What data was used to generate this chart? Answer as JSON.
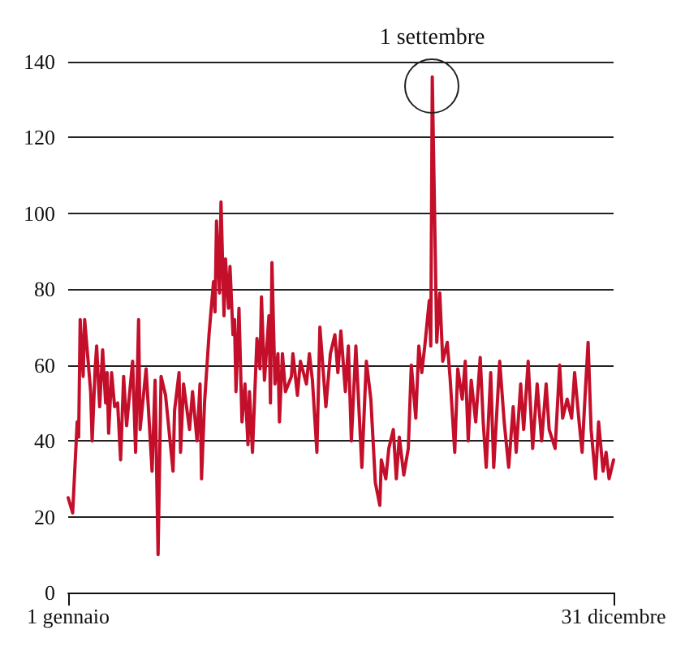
{
  "chart_data": {
    "type": "line",
    "x": [
      "--01-01",
      "--01-04",
      "--01-07",
      "--01-08",
      "--01-09",
      "--01-11",
      "--01-12",
      "--01-16",
      "--01-17",
      "--01-19",
      "--01-20",
      "--01-22",
      "--01-24",
      "--01-26",
      "--01-27",
      "--01-28",
      "--01-30",
      "--02-01",
      "--02-03",
      "--02-05",
      "--02-07",
      "--02-09",
      "--02-13",
      "--02-15",
      "--02-17",
      "--02-18",
      "--02-22",
      "--02-26",
      "--02-28",
      "--03-02",
      "--03-04",
      "--03-07",
      "--03-12",
      "--03-13",
      "--03-16",
      "--03-17",
      "--03-19",
      "--03-23",
      "--03-25",
      "--03-28",
      "--03-30",
      "--03-31",
      "--04-02",
      "--04-05",
      "--04-08",
      "--04-09",
      "--04-10",
      "--04-12",
      "--04-13",
      "--04-15",
      "--04-16",
      "--04-18",
      "--04-19",
      "--04-21",
      "--04-22",
      "--04-23",
      "--04-25",
      "--04-27",
      "--04-29",
      "--05-01",
      "--05-02",
      "--05-04",
      "--05-07",
      "--05-09",
      "--05-10",
      "--05-12",
      "--05-15",
      "--05-16",
      "--05-17",
      "--05-19",
      "--05-21",
      "--05-22",
      "--05-24",
      "--05-26",
      "--05-30",
      "--05-31",
      "--06-03",
      "--06-05",
      "--06-09",
      "--06-11",
      "--06-13",
      "--06-16",
      "--06-18",
      "--06-22",
      "--06-25",
      "--06-28",
      "--06-30",
      "--07-02",
      "--07-05",
      "--07-07",
      "--07-09",
      "--07-12",
      "--07-16",
      "--07-19",
      "--07-22",
      "--07-25",
      "--07-28",
      "--07-29",
      "--08-01",
      "--08-03",
      "--08-06",
      "--08-08",
      "--08-10",
      "--08-13",
      "--08-16",
      "--08-18",
      "--08-21",
      "--08-23",
      "--08-25",
      "--08-27",
      "--08-30",
      "--08-31",
      "--09-01",
      "--09-04",
      "--09-06",
      "--09-08",
      "--09-11",
      "--09-13",
      "--09-16",
      "--09-18",
      "--09-21",
      "--09-23",
      "--09-25",
      "--09-27",
      "--09-30",
      "--10-03",
      "--10-05",
      "--10-07",
      "--10-10",
      "--10-12",
      "--10-16",
      "--10-19",
      "--10-22",
      "--10-25",
      "--10-27",
      "--10-30",
      "--11-01",
      "--11-04",
      "--11-07",
      "--11-10",
      "--11-13",
      "--11-16",
      "--11-18",
      "--11-22",
      "--11-25",
      "--11-27",
      "--11-30",
      "--12-03",
      "--12-05",
      "--12-08",
      "--12-10",
      "--12-12",
      "--12-14",
      "--12-16",
      "--12-19",
      "--12-21",
      "--12-24",
      "--12-26",
      "--12-28",
      "--12-31"
    ],
    "series": [
      {
        "color": "#c40f2b",
        "values": [
          25,
          21,
          45,
          41,
          72,
          57,
          72,
          53,
          40,
          59,
          65,
          49,
          64,
          50,
          58,
          42,
          58,
          49,
          50,
          35,
          57,
          44,
          61,
          37,
          72,
          43,
          59,
          32,
          56,
          10,
          57,
          52,
          32,
          48,
          58,
          37,
          55,
          43,
          53,
          40,
          55,
          30,
          50,
          68,
          82,
          74,
          98,
          79,
          103,
          73,
          88,
          75,
          86,
          68,
          72,
          53,
          75,
          45,
          55,
          39,
          53,
          37,
          67,
          59,
          78,
          56,
          73,
          50,
          87,
          55,
          63,
          45,
          63,
          53,
          57,
          63,
          52,
          61,
          55,
          63,
          56,
          37,
          70,
          49,
          63,
          68,
          58,
          69,
          53,
          65,
          40,
          65,
          33,
          61,
          51,
          29,
          23,
          35,
          30,
          38,
          43,
          30,
          41,
          31,
          38,
          60,
          46,
          65,
          58,
          65,
          77,
          65,
          136,
          66,
          79,
          61,
          66,
          56,
          37,
          59,
          51,
          61,
          40,
          56,
          45,
          62,
          45,
          33,
          58,
          33,
          61,
          45,
          33,
          49,
          37,
          55,
          43,
          61,
          38,
          55,
          40,
          55,
          43,
          38,
          60,
          46,
          51,
          46,
          58,
          45,
          37,
          52,
          66,
          43,
          30,
          45,
          32,
          37,
          30,
          35
        ]
      }
    ],
    "xlim": [
      "--01-01",
      "--12-31"
    ],
    "xticks": [
      {
        "value": "--01-01",
        "label": "1 gennaio"
      },
      {
        "value": "--12-31",
        "label": "31 dicembre"
      }
    ],
    "ylim": [
      0,
      140
    ],
    "yticks": [
      0,
      20,
      40,
      60,
      80,
      100,
      120,
      140
    ],
    "grid": "y",
    "marker": "none",
    "line_style": "solid",
    "annotations": [
      {
        "text": "1 settembre",
        "x": "--09-01",
        "y": 136
      }
    ]
  }
}
